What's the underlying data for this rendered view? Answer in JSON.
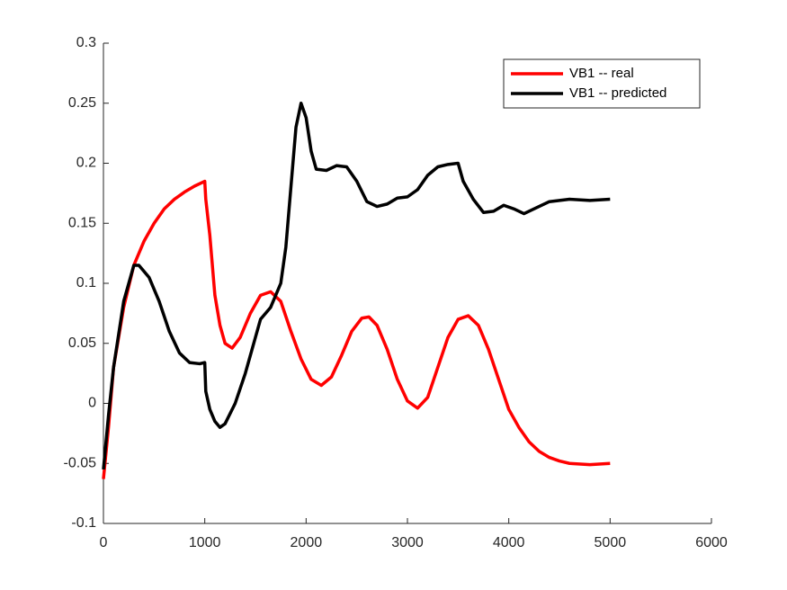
{
  "chart_data": {
    "type": "line",
    "xlim": [
      0,
      6000
    ],
    "xticks": [
      0,
      1000,
      2000,
      3000,
      4000,
      5000,
      6000
    ],
    "ylim": [
      -0.1,
      0.3
    ],
    "yticks": [
      -0.1,
      -0.05,
      0,
      0.05,
      0.1,
      0.15,
      0.2,
      0.25,
      0.3
    ],
    "legend": "northeast",
    "series": [
      {
        "name": "VB1 -- real",
        "color": "#ff0000",
        "x": [
          0,
          50,
          100,
          200,
          300,
          400,
          500,
          600,
          700,
          800,
          900,
          1000,
          1010,
          1050,
          1100,
          1150,
          1200,
          1270,
          1350,
          1450,
          1550,
          1650,
          1750,
          1850,
          1950,
          2050,
          2150,
          2250,
          2350,
          2450,
          2550,
          2620,
          2700,
          2800,
          2900,
          3000,
          3100,
          3200,
          3300,
          3400,
          3500,
          3600,
          3700,
          3800,
          3900,
          4000,
          4100,
          4200,
          4300,
          4400,
          4500,
          4600,
          4800,
          5000
        ],
        "values": [
          -0.063,
          -0.02,
          0.03,
          0.08,
          0.115,
          0.135,
          0.15,
          0.162,
          0.17,
          0.176,
          0.181,
          0.185,
          0.17,
          0.14,
          0.09,
          0.065,
          0.05,
          0.046,
          0.055,
          0.075,
          0.09,
          0.093,
          0.085,
          0.06,
          0.037,
          0.02,
          0.015,
          0.022,
          0.04,
          0.06,
          0.071,
          0.072,
          0.065,
          0.045,
          0.02,
          0.002,
          -0.004,
          0.005,
          0.03,
          0.055,
          0.07,
          0.073,
          0.065,
          0.045,
          0.02,
          -0.005,
          -0.02,
          -0.032,
          -0.04,
          -0.045,
          -0.048,
          -0.05,
          -0.051,
          -0.05
        ]
      },
      {
        "name": "VB1 -- predicted",
        "color": "#000000",
        "x": [
          0,
          50,
          100,
          200,
          300,
          350,
          450,
          550,
          650,
          750,
          850,
          950,
          1000,
          1010,
          1050,
          1100,
          1150,
          1200,
          1300,
          1400,
          1500,
          1550,
          1650,
          1750,
          1800,
          1850,
          1900,
          1950,
          2000,
          2050,
          2100,
          2200,
          2300,
          2400,
          2500,
          2600,
          2700,
          2800,
          2900,
          3000,
          3100,
          3200,
          3300,
          3400,
          3500,
          3550,
          3650,
          3750,
          3850,
          3950,
          4050,
          4150,
          4250,
          4400,
          4600,
          4800,
          5000
        ],
        "values": [
          -0.055,
          -0.01,
          0.03,
          0.085,
          0.115,
          0.115,
          0.105,
          0.085,
          0.06,
          0.042,
          0.034,
          0.033,
          0.034,
          0.01,
          -0.005,
          -0.015,
          -0.02,
          -0.017,
          0.0,
          0.025,
          0.055,
          0.07,
          0.08,
          0.1,
          0.13,
          0.18,
          0.23,
          0.25,
          0.238,
          0.21,
          0.195,
          0.194,
          0.198,
          0.197,
          0.185,
          0.168,
          0.164,
          0.166,
          0.171,
          0.172,
          0.178,
          0.19,
          0.197,
          0.199,
          0.2,
          0.185,
          0.17,
          0.159,
          0.16,
          0.165,
          0.162,
          0.158,
          0.162,
          0.168,
          0.17,
          0.169,
          0.17
        ]
      }
    ]
  }
}
